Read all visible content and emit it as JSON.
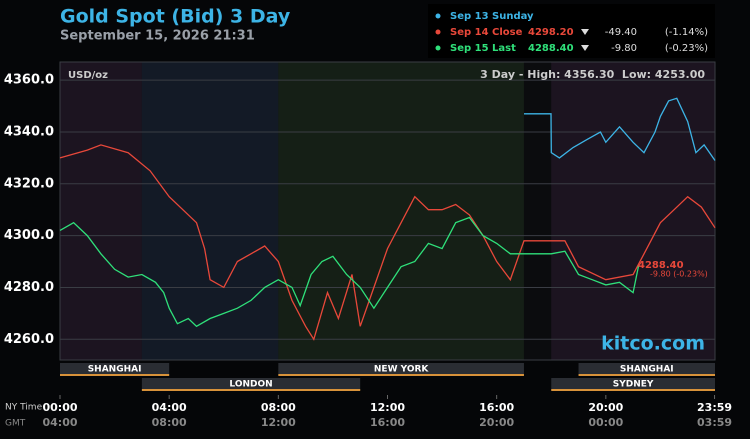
{
  "chart_data": {
    "type": "line",
    "title": "Gold Spot (Bid) 3 Day",
    "subtitle": "September 15, 2026 21:31",
    "unit_label": "USD/oz",
    "range_note": "3 Day - High: 4356.30  Low: 4253.00",
    "brand": "kitco.com",
    "last_label": "4288.40",
    "last_change_label": "-9.80 (-0.23%)",
    "x_row_label": "NY Time",
    "x2_row_label": "GMT",
    "xlim": [
      0,
      24
    ],
    "ylim": [
      4252,
      4367
    ],
    "yticks": [
      {
        "value": 4260,
        "label": "4260.0"
      },
      {
        "value": 4280,
        "label": "4280.0"
      },
      {
        "value": 4300,
        "label": "4300.0"
      },
      {
        "value": 4320,
        "label": "4320.0"
      },
      {
        "value": 4340,
        "label": "4340.0"
      },
      {
        "value": 4360,
        "label": "4360.0"
      }
    ],
    "xticks": [
      {
        "value": 0,
        "label": "00:00"
      },
      {
        "value": 4,
        "label": "04:00"
      },
      {
        "value": 8,
        "label": "08:00"
      },
      {
        "value": 12,
        "label": "12:00"
      },
      {
        "value": 16,
        "label": "16:00"
      },
      {
        "value": 20,
        "label": "20:00"
      },
      {
        "value": 23.9833,
        "label": "23:59"
      }
    ],
    "x2ticks": [
      {
        "value": 0,
        "label": "04:00"
      },
      {
        "value": 4,
        "label": "08:00"
      },
      {
        "value": 8,
        "label": "12:00"
      },
      {
        "value": 12,
        "label": "16:00"
      },
      {
        "value": 16,
        "label": "20:00"
      },
      {
        "value": 20,
        "label": "00:00"
      },
      {
        "value": 23.9833,
        "label": "03:59"
      }
    ],
    "grid": true,
    "shading": [
      {
        "start": 0,
        "end": 3,
        "color": "#1c1420"
      },
      {
        "start": 3,
        "end": 8,
        "color": "#131a26"
      },
      {
        "start": 8,
        "end": 17,
        "color": "#151f16"
      },
      {
        "start": 17,
        "end": 18,
        "color": "#0b0c0e"
      },
      {
        "start": 18,
        "end": 24,
        "color": "#1c1420"
      }
    ],
    "sessions": [
      {
        "name": "SHANGHAI",
        "start": 0,
        "end": 4
      },
      {
        "name": "LONDON",
        "start": 3,
        "end": 11
      },
      {
        "name": "NEW YORK",
        "start": 8,
        "end": 17
      },
      {
        "name": "SYDNEY",
        "start": 18,
        "end": 24
      },
      {
        "name": "SHANGHAI",
        "start": 19,
        "end": 24
      }
    ],
    "series": [
      {
        "name": "Sep 13 Sunday",
        "color": "#3db4e6",
        "x": [
          17,
          17.99,
          18,
          18.3,
          18.8,
          19.3,
          19.8,
          20,
          20.5,
          21,
          21.4,
          21.8,
          22,
          22.3,
          22.6,
          23,
          23.3,
          23.6,
          24
        ],
        "values": [
          4347,
          4347,
          4332,
          4330,
          4334,
          4337,
          4340,
          4336,
          4342,
          4336,
          4332,
          4340,
          4346,
          4352,
          4353,
          4344,
          4332,
          4335,
          4329
        ]
      },
      {
        "name": "Sep 14 Close",
        "color": "#e8483a",
        "legend_value": "4298.20",
        "legend_change": "-49.40",
        "legend_pct": "(-1.14%)",
        "x": [
          0,
          1,
          1.5,
          2.5,
          3.3,
          4,
          5,
          5.3,
          5.5,
          6,
          6.5,
          7,
          7.5,
          8,
          8.5,
          9,
          9.3,
          9.8,
          10.2,
          10.7,
          11,
          11.5,
          12,
          12.5,
          13,
          13.5,
          14,
          14.5,
          15,
          15.5,
          16,
          16.5,
          17,
          18,
          18.5,
          19,
          20,
          21,
          21.5,
          22,
          22.5,
          23,
          23.5,
          24
        ],
        "values": [
          4330,
          4333,
          4335,
          4332,
          4325,
          4315,
          4305,
          4295,
          4283,
          4280,
          4290,
          4293,
          4296,
          4290,
          4275,
          4265,
          4260,
          4278,
          4268,
          4285,
          4265,
          4280,
          4295,
          4305,
          4315,
          4310,
          4310,
          4312,
          4308,
          4300,
          4290,
          4283,
          4298,
          4298,
          4298,
          4288,
          4283,
          4285,
          4295,
          4305,
          4310,
          4315,
          4311,
          4303
        ]
      },
      {
        "name": "Sep 15 Last",
        "color": "#2fe07a",
        "legend_value": "4288.40",
        "legend_change": "-9.80",
        "legend_pct": "(-0.23%)",
        "x": [
          0,
          0.5,
          1,
          1.5,
          2,
          2.5,
          3,
          3.5,
          3.8,
          4,
          4.3,
          4.7,
          5,
          5.5,
          6,
          6.5,
          7,
          7.5,
          8,
          8.5,
          8.8,
          9.2,
          9.6,
          10,
          10.5,
          11,
          11.5,
          12,
          12.5,
          13,
          13.5,
          14,
          14.5,
          15,
          15.5,
          16,
          16.5,
          17,
          17.5,
          18,
          18.5,
          19,
          19.5,
          20,
          20.5,
          21,
          21.2
        ],
        "values": [
          4302,
          4305,
          4300,
          4293,
          4287,
          4284,
          4285,
          4282,
          4278,
          4272,
          4266,
          4268,
          4265,
          4268,
          4270,
          4272,
          4275,
          4280,
          4283,
          4280,
          4273,
          4285,
          4290,
          4292,
          4285,
          4280,
          4272,
          4280,
          4288,
          4290,
          4297,
          4295,
          4305,
          4307,
          4300,
          4297,
          4293,
          4293,
          4293,
          4293,
          4294,
          4285,
          4283,
          4281,
          4282,
          4278,
          4288.4
        ]
      }
    ]
  }
}
